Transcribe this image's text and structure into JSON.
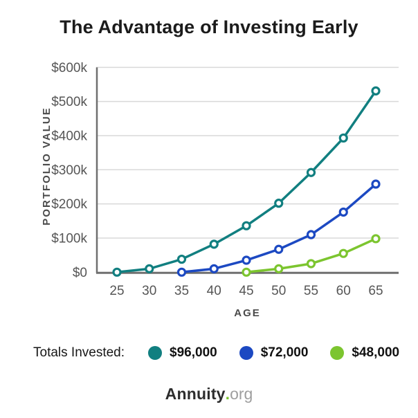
{
  "title": "The Advantage of Investing Early",
  "chart_data": {
    "type": "line",
    "title": "The Advantage of Investing Early",
    "xlabel": "AGE",
    "ylabel": "PORTFOLIO VALUE",
    "x": [
      25,
      30,
      35,
      40,
      45,
      50,
      55,
      60,
      65
    ],
    "y_tick_labels": [
      "$0",
      "$100k",
      "$200k",
      "$300k",
      "$400k",
      "$500k",
      "$600k"
    ],
    "y_ticks_k": [
      0,
      100,
      200,
      300,
      400,
      500,
      600
    ],
    "ylim_k": [
      0,
      600
    ],
    "grid": "horizontal-only",
    "legend_position": "bottom",
    "series": [
      {
        "id": "invested-96k",
        "name": "$96,000 total invested (start age 25)",
        "color": "#117f80",
        "start_age": 25,
        "values_k": [
          0,
          10,
          38,
          82,
          136,
          202,
          292,
          393,
          531
        ]
      },
      {
        "id": "invested-72k",
        "name": "$72,000 total invested (start age 35)",
        "color": "#1c49c2",
        "start_age": 35,
        "values_k": [
          0,
          10,
          35,
          67,
          110,
          176,
          258
        ]
      },
      {
        "id": "invested-48k",
        "name": "$48,000 total invested (start age 45)",
        "color": "#7cc52f",
        "start_age": 45,
        "values_k": [
          0,
          10,
          25,
          55,
          98
        ]
      }
    ]
  },
  "legend": {
    "title": "Totals Invested:",
    "items": [
      {
        "label": "$96,000",
        "color": "#117f80"
      },
      {
        "label": "$72,000",
        "color": "#1c49c2"
      },
      {
        "label": "$48,000",
        "color": "#7cc52f"
      }
    ]
  },
  "footer": {
    "brand": "Annuity",
    "dot": ".",
    "suffix": "org",
    "dot_color": "#7cc52f"
  },
  "colors": {
    "title_text": "#1b1b1b",
    "tick_text": "#555555",
    "axis_label_text": "#4a4a4a",
    "axis_line": "#6f6f6f",
    "gridline": "#d9d9d9",
    "background": "#ffffff"
  }
}
